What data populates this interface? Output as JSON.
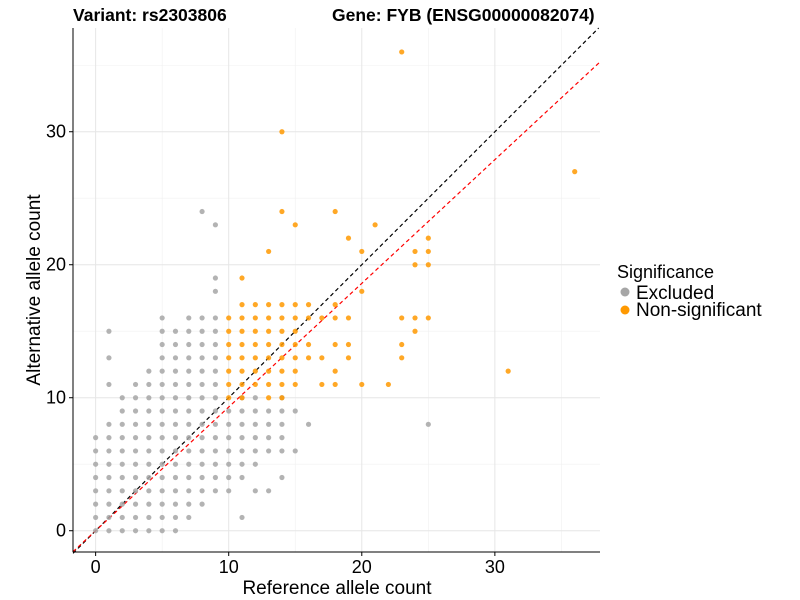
{
  "title": {
    "variant": "Variant: rs2303806",
    "gene": "Gene: FYB (ENSG00000082074)"
  },
  "chart_data": {
    "type": "scatter",
    "xlabel": "Reference allele count",
    "ylabel": "Alternative allele count",
    "xlim": [
      -1.7,
      37.9
    ],
    "ylim": [
      -1.6,
      37.8
    ],
    "x_ticks": [
      0,
      10,
      20,
      30
    ],
    "y_ticks": [
      0,
      10,
      20,
      30
    ],
    "grid": true,
    "legend": {
      "title": "Significance",
      "position": "right",
      "entries": [
        {
          "label": "Excluded",
          "color": "#a6a6a6"
        },
        {
          "label": "Non-significant",
          "color": "#ff9900"
        }
      ]
    },
    "reference_lines": [
      {
        "name": "identity",
        "slope": 1.0,
        "intercept": 0,
        "color": "#000000",
        "dash": true
      },
      {
        "name": "fit",
        "slope": 0.93,
        "intercept": 0,
        "color": "#ff0000",
        "dash": true
      }
    ],
    "series": [
      {
        "name": "Excluded",
        "color": "#a6a6a6",
        "points": [
          [
            0,
            0
          ],
          [
            0,
            1
          ],
          [
            0,
            2
          ],
          [
            0,
            3
          ],
          [
            0,
            4
          ],
          [
            0,
            5
          ],
          [
            0,
            6
          ],
          [
            0,
            7
          ],
          [
            1,
            0
          ],
          [
            1,
            1
          ],
          [
            1,
            2
          ],
          [
            1,
            3
          ],
          [
            1,
            4
          ],
          [
            1,
            5
          ],
          [
            1,
            6
          ],
          [
            1,
            7
          ],
          [
            1,
            8
          ],
          [
            1,
            11
          ],
          [
            1,
            13
          ],
          [
            1,
            15
          ],
          [
            2,
            0
          ],
          [
            2,
            1
          ],
          [
            2,
            2
          ],
          [
            2,
            3
          ],
          [
            2,
            4
          ],
          [
            2,
            5
          ],
          [
            2,
            6
          ],
          [
            2,
            7
          ],
          [
            2,
            8
          ],
          [
            2,
            9
          ],
          [
            2,
            10
          ],
          [
            3,
            0
          ],
          [
            3,
            1
          ],
          [
            3,
            2
          ],
          [
            3,
            3
          ],
          [
            3,
            4
          ],
          [
            3,
            5
          ],
          [
            3,
            6
          ],
          [
            3,
            7
          ],
          [
            3,
            8
          ],
          [
            3,
            9
          ],
          [
            3,
            10
          ],
          [
            3,
            11
          ],
          [
            4,
            0
          ],
          [
            4,
            1
          ],
          [
            4,
            2
          ],
          [
            4,
            3
          ],
          [
            4,
            4
          ],
          [
            4,
            5
          ],
          [
            4,
            6
          ],
          [
            4,
            7
          ],
          [
            4,
            8
          ],
          [
            4,
            9
          ],
          [
            4,
            10
          ],
          [
            4,
            11
          ],
          [
            4,
            12
          ],
          [
            5,
            0
          ],
          [
            5,
            1
          ],
          [
            5,
            2
          ],
          [
            5,
            3
          ],
          [
            5,
            4
          ],
          [
            5,
            5
          ],
          [
            5,
            6
          ],
          [
            5,
            7
          ],
          [
            5,
            8
          ],
          [
            5,
            9
          ],
          [
            5,
            10
          ],
          [
            5,
            11
          ],
          [
            5,
            12
          ],
          [
            5,
            13
          ],
          [
            5,
            14
          ],
          [
            5,
            15
          ],
          [
            5,
            16
          ],
          [
            6,
            0
          ],
          [
            6,
            1
          ],
          [
            6,
            2
          ],
          [
            6,
            3
          ],
          [
            6,
            4
          ],
          [
            6,
            5
          ],
          [
            6,
            6
          ],
          [
            6,
            7
          ],
          [
            6,
            8
          ],
          [
            6,
            9
          ],
          [
            6,
            10
          ],
          [
            6,
            11
          ],
          [
            6,
            12
          ],
          [
            6,
            13
          ],
          [
            6,
            14
          ],
          [
            6,
            15
          ],
          [
            7,
            1
          ],
          [
            7,
            2
          ],
          [
            7,
            3
          ],
          [
            7,
            4
          ],
          [
            7,
            5
          ],
          [
            7,
            6
          ],
          [
            7,
            7
          ],
          [
            7,
            8
          ],
          [
            7,
            9
          ],
          [
            7,
            10
          ],
          [
            7,
            11
          ],
          [
            7,
            12
          ],
          [
            7,
            13
          ],
          [
            7,
            14
          ],
          [
            7,
            15
          ],
          [
            7,
            16
          ],
          [
            8,
            2
          ],
          [
            8,
            3
          ],
          [
            8,
            4
          ],
          [
            8,
            5
          ],
          [
            8,
            6
          ],
          [
            8,
            7
          ],
          [
            8,
            8
          ],
          [
            8,
            9
          ],
          [
            8,
            10
          ],
          [
            8,
            11
          ],
          [
            8,
            12
          ],
          [
            8,
            13
          ],
          [
            8,
            14
          ],
          [
            8,
            15
          ],
          [
            8,
            16
          ],
          [
            8,
            24
          ],
          [
            9,
            3
          ],
          [
            9,
            4
          ],
          [
            9,
            5
          ],
          [
            9,
            6
          ],
          [
            9,
            7
          ],
          [
            9,
            8
          ],
          [
            9,
            9
          ],
          [
            9,
            10
          ],
          [
            9,
            11
          ],
          [
            9,
            12
          ],
          [
            9,
            13
          ],
          [
            9,
            14
          ],
          [
            9,
            15
          ],
          [
            9,
            16
          ],
          [
            9,
            18
          ],
          [
            9,
            19
          ],
          [
            9,
            23
          ],
          [
            10,
            3
          ],
          [
            10,
            4
          ],
          [
            10,
            5
          ],
          [
            10,
            6
          ],
          [
            10,
            7
          ],
          [
            10,
            8
          ],
          [
            10,
            9
          ],
          [
            11,
            1
          ],
          [
            11,
            4
          ],
          [
            11,
            5
          ],
          [
            11,
            6
          ],
          [
            11,
            7
          ],
          [
            11,
            8
          ],
          [
            11,
            9
          ],
          [
            11,
            10
          ],
          [
            12,
            3
          ],
          [
            12,
            5
          ],
          [
            12,
            6
          ],
          [
            12,
            7
          ],
          [
            12,
            8
          ],
          [
            12,
            9
          ],
          [
            12,
            10
          ],
          [
            13,
            3
          ],
          [
            13,
            6
          ],
          [
            13,
            7
          ],
          [
            13,
            8
          ],
          [
            13,
            9
          ],
          [
            14,
            4
          ],
          [
            14,
            6
          ],
          [
            14,
            7
          ],
          [
            14,
            8
          ],
          [
            14,
            9
          ],
          [
            14,
            10
          ],
          [
            15,
            6
          ],
          [
            15,
            9
          ],
          [
            16,
            8
          ],
          [
            25,
            8
          ]
        ]
      },
      {
        "name": "Non-significant",
        "color": "#ff9900",
        "points": [
          [
            10,
            10
          ],
          [
            10,
            11
          ],
          [
            10,
            12
          ],
          [
            10,
            13
          ],
          [
            10,
            14
          ],
          [
            10,
            15
          ],
          [
            10,
            16
          ],
          [
            11,
            10
          ],
          [
            11,
            11
          ],
          [
            11,
            12
          ],
          [
            11,
            13
          ],
          [
            11,
            14
          ],
          [
            11,
            15
          ],
          [
            11,
            16
          ],
          [
            11,
            17
          ],
          [
            11,
            19
          ],
          [
            12,
            11
          ],
          [
            12,
            12
          ],
          [
            12,
            13
          ],
          [
            12,
            14
          ],
          [
            12,
            15
          ],
          [
            12,
            16
          ],
          [
            12,
            17
          ],
          [
            13,
            10
          ],
          [
            13,
            11
          ],
          [
            13,
            12
          ],
          [
            13,
            13
          ],
          [
            13,
            14
          ],
          [
            13,
            15
          ],
          [
            13,
            16
          ],
          [
            13,
            17
          ],
          [
            13,
            21
          ],
          [
            14,
            10
          ],
          [
            14,
            11
          ],
          [
            14,
            12
          ],
          [
            14,
            13
          ],
          [
            14,
            14
          ],
          [
            14,
            15
          ],
          [
            14,
            16
          ],
          [
            14,
            17
          ],
          [
            14,
            24
          ],
          [
            14,
            30
          ],
          [
            15,
            11
          ],
          [
            15,
            12
          ],
          [
            15,
            13
          ],
          [
            15,
            14
          ],
          [
            15,
            15
          ],
          [
            15,
            16
          ],
          [
            15,
            17
          ],
          [
            15,
            23
          ],
          [
            16,
            13
          ],
          [
            16,
            14
          ],
          [
            16,
            16
          ],
          [
            16,
            17
          ],
          [
            17,
            11
          ],
          [
            17,
            13
          ],
          [
            17,
            16
          ],
          [
            18,
            11
          ],
          [
            18,
            12
          ],
          [
            18,
            14
          ],
          [
            18,
            16
          ],
          [
            18,
            17
          ],
          [
            18,
            24
          ],
          [
            19,
            13
          ],
          [
            19,
            14
          ],
          [
            19,
            16
          ],
          [
            19,
            22
          ],
          [
            20,
            11
          ],
          [
            20,
            18
          ],
          [
            20,
            21
          ],
          [
            21,
            23
          ],
          [
            22,
            11
          ],
          [
            23,
            13
          ],
          [
            23,
            14
          ],
          [
            23,
            16
          ],
          [
            23,
            36
          ],
          [
            24,
            15
          ],
          [
            24,
            16
          ],
          [
            24,
            20
          ],
          [
            24,
            21
          ],
          [
            25,
            16
          ],
          [
            25,
            20
          ],
          [
            25,
            21
          ],
          [
            25,
            22
          ],
          [
            31,
            12
          ],
          [
            36,
            27
          ]
        ]
      }
    ]
  }
}
